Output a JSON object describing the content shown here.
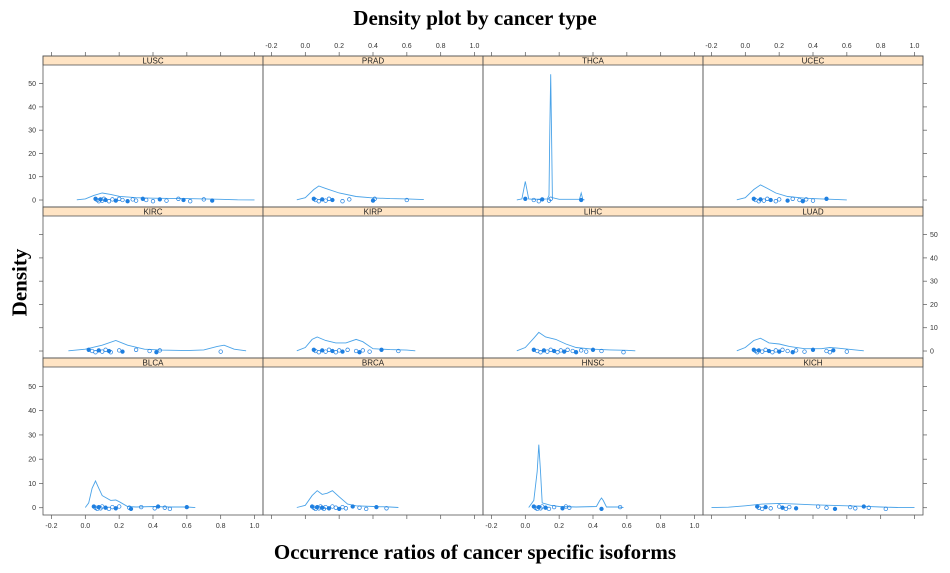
{
  "chart_data": {
    "type": "density",
    "title": "Density plot by cancer type",
    "xlabel": "Occurrence ratios of cancer specific isoforms",
    "ylabel": "Density",
    "xlim": [
      -0.25,
      1.05
    ],
    "ylim": [
      -3,
      58
    ],
    "x_ticks": [
      -0.2,
      0.0,
      0.2,
      0.4,
      0.6,
      0.8,
      1.0
    ],
    "x_tick_labels": [
      "-0.2",
      "0.0",
      "0.2",
      "0.4",
      "0.6",
      "0.8",
      "1.0"
    ],
    "y_ticks": [
      0,
      10,
      20,
      30,
      40,
      50
    ],
    "y_tick_labels": [
      "0",
      "10",
      "20",
      "30",
      "40",
      "50"
    ],
    "layout": {
      "columns": 4,
      "rows": 3
    },
    "colors": {
      "line": "#4aa3e8",
      "points": "#1e7fe0",
      "strip": "#ffe4c4",
      "frame": "#555555"
    },
    "panels": [
      {
        "name": "LUSC",
        "curve": [
          [
            -0.05,
            0.1
          ],
          [
            0.0,
            0.5
          ],
          [
            0.05,
            2.0
          ],
          [
            0.1,
            3.0
          ],
          [
            0.15,
            2.4
          ],
          [
            0.2,
            1.6
          ],
          [
            0.3,
            1.0
          ],
          [
            0.4,
            0.8
          ],
          [
            0.5,
            0.7
          ],
          [
            0.6,
            0.6
          ],
          [
            0.7,
            0.5
          ],
          [
            0.8,
            0.3
          ],
          [
            0.9,
            0.1
          ],
          [
            1.0,
            0.05
          ]
        ],
        "points": [
          0.06,
          0.07,
          0.08,
          0.09,
          0.1,
          0.11,
          0.12,
          0.14,
          0.16,
          0.18,
          0.2,
          0.22,
          0.25,
          0.28,
          0.3,
          0.34,
          0.36,
          0.4,
          0.44,
          0.48,
          0.55,
          0.58,
          0.62,
          0.7,
          0.75
        ]
      },
      {
        "name": "PRAD",
        "curve": [
          [
            -0.05,
            0.1
          ],
          [
            0.0,
            1.0
          ],
          [
            0.05,
            4.5
          ],
          [
            0.08,
            6.0
          ],
          [
            0.12,
            5.0
          ],
          [
            0.2,
            3.0
          ],
          [
            0.3,
            1.5
          ],
          [
            0.4,
            0.9
          ],
          [
            0.5,
            0.6
          ],
          [
            0.6,
            0.5
          ],
          [
            0.7,
            0.2
          ]
        ],
        "points": [
          0.05,
          0.06,
          0.08,
          0.1,
          0.12,
          0.14,
          0.16,
          0.22,
          0.26,
          0.4,
          0.41,
          0.6
        ]
      },
      {
        "name": "THCA",
        "curve": [
          [
            -0.05,
            0.05
          ],
          [
            -0.02,
            0.5
          ],
          [
            0.0,
            8.0
          ],
          [
            0.02,
            0.5
          ],
          [
            0.05,
            0.3
          ],
          [
            0.1,
            0.4
          ],
          [
            0.13,
            0.5
          ],
          [
            0.14,
            2.0
          ],
          [
            0.145,
            30
          ],
          [
            0.15,
            54
          ],
          [
            0.155,
            30
          ],
          [
            0.16,
            1.0
          ],
          [
            0.2,
            0.3
          ],
          [
            0.3,
            0.3
          ],
          [
            0.32,
            0.3
          ],
          [
            0.33,
            3.0
          ],
          [
            0.34,
            0.3
          ],
          [
            0.35,
            0.05
          ]
        ],
        "points": [
          0.0,
          0.05,
          0.08,
          0.1,
          0.14,
          0.15,
          0.33
        ]
      },
      {
        "name": "UCEC",
        "curve": [
          [
            -0.05,
            0.1
          ],
          [
            0.0,
            1.0
          ],
          [
            0.05,
            4.5
          ],
          [
            0.09,
            6.5
          ],
          [
            0.13,
            5.0
          ],
          [
            0.18,
            3.0
          ],
          [
            0.25,
            1.5
          ],
          [
            0.35,
            0.8
          ],
          [
            0.45,
            0.5
          ],
          [
            0.55,
            0.2
          ],
          [
            0.6,
            0.05
          ]
        ],
        "points": [
          0.05,
          0.06,
          0.08,
          0.09,
          0.11,
          0.13,
          0.15,
          0.18,
          0.2,
          0.25,
          0.28,
          0.32,
          0.34,
          0.36,
          0.4,
          0.48
        ]
      },
      {
        "name": "KIRC",
        "curve": [
          [
            -0.1,
            0.1
          ],
          [
            0.0,
            0.8
          ],
          [
            0.1,
            2.5
          ],
          [
            0.18,
            4.5
          ],
          [
            0.25,
            2.5
          ],
          [
            0.35,
            0.8
          ],
          [
            0.45,
            0.4
          ],
          [
            0.6,
            0.2
          ],
          [
            0.7,
            0.5
          ],
          [
            0.78,
            2.0
          ],
          [
            0.82,
            2.5
          ],
          [
            0.88,
            0.8
          ],
          [
            0.95,
            0.1
          ]
        ],
        "points": [
          0.02,
          0.04,
          0.06,
          0.08,
          0.1,
          0.12,
          0.14,
          0.15,
          0.2,
          0.22,
          0.3,
          0.38,
          0.42,
          0.44,
          0.8
        ]
      },
      {
        "name": "KIRP",
        "curve": [
          [
            -0.05,
            0.1
          ],
          [
            0.0,
            1.5
          ],
          [
            0.04,
            5.0
          ],
          [
            0.07,
            6.0
          ],
          [
            0.12,
            4.5
          ],
          [
            0.18,
            3.5
          ],
          [
            0.24,
            3.5
          ],
          [
            0.3,
            5.0
          ],
          [
            0.34,
            4.0
          ],
          [
            0.4,
            1.0
          ],
          [
            0.5,
            0.6
          ],
          [
            0.6,
            0.4
          ],
          [
            0.65,
            0.1
          ]
        ],
        "points": [
          0.05,
          0.06,
          0.08,
          0.1,
          0.12,
          0.14,
          0.16,
          0.18,
          0.2,
          0.22,
          0.25,
          0.3,
          0.32,
          0.34,
          0.38,
          0.45,
          0.55
        ]
      },
      {
        "name": "LIHC",
        "curve": [
          [
            -0.05,
            0.1
          ],
          [
            0.0,
            1.5
          ],
          [
            0.05,
            5.5
          ],
          [
            0.08,
            8.0
          ],
          [
            0.12,
            6.0
          ],
          [
            0.18,
            5.0
          ],
          [
            0.24,
            3.0
          ],
          [
            0.3,
            1.5
          ],
          [
            0.4,
            0.8
          ],
          [
            0.5,
            0.5
          ],
          [
            0.6,
            0.3
          ],
          [
            0.65,
            0.1
          ]
        ],
        "points": [
          0.05,
          0.07,
          0.09,
          0.11,
          0.13,
          0.15,
          0.17,
          0.19,
          0.21,
          0.23,
          0.25,
          0.28,
          0.3,
          0.33,
          0.36,
          0.4,
          0.45,
          0.58
        ]
      },
      {
        "name": "LUAD",
        "curve": [
          [
            -0.05,
            0.1
          ],
          [
            0.0,
            1.5
          ],
          [
            0.05,
            4.5
          ],
          [
            0.09,
            5.5
          ],
          [
            0.14,
            3.5
          ],
          [
            0.2,
            3.0
          ],
          [
            0.26,
            2.0
          ],
          [
            0.35,
            1.0
          ],
          [
            0.45,
            1.0
          ],
          [
            0.5,
            1.5
          ],
          [
            0.55,
            1.2
          ],
          [
            0.65,
            0.5
          ],
          [
            0.7,
            0.1
          ]
        ],
        "points": [
          0.05,
          0.06,
          0.07,
          0.08,
          0.1,
          0.12,
          0.14,
          0.16,
          0.18,
          0.2,
          0.22,
          0.25,
          0.28,
          0.3,
          0.35,
          0.4,
          0.48,
          0.5,
          0.52,
          0.6
        ]
      },
      {
        "name": "BLCA",
        "curve": [
          [
            0.0,
            0.1
          ],
          [
            0.02,
            2.0
          ],
          [
            0.04,
            8.0
          ],
          [
            0.06,
            11.0
          ],
          [
            0.08,
            8.0
          ],
          [
            0.1,
            5.0
          ],
          [
            0.15,
            3.0
          ],
          [
            0.18,
            3.2
          ],
          [
            0.2,
            2.5
          ],
          [
            0.25,
            0.5
          ],
          [
            0.3,
            0.3
          ],
          [
            0.4,
            0.5
          ],
          [
            0.5,
            0.3
          ],
          [
            0.6,
            0.3
          ],
          [
            0.65,
            0.05
          ]
        ],
        "points": [
          0.05,
          0.06,
          0.07,
          0.08,
          0.09,
          0.1,
          0.12,
          0.14,
          0.16,
          0.18,
          0.2,
          0.26,
          0.27,
          0.33,
          0.41,
          0.43,
          0.47,
          0.5,
          0.6
        ]
      },
      {
        "name": "BRCA",
        "curve": [
          [
            -0.05,
            0.1
          ],
          [
            0.0,
            1.0
          ],
          [
            0.04,
            5.0
          ],
          [
            0.07,
            7.0
          ],
          [
            0.1,
            5.5
          ],
          [
            0.13,
            6.0
          ],
          [
            0.16,
            7.0
          ],
          [
            0.2,
            4.5
          ],
          [
            0.25,
            1.5
          ],
          [
            0.3,
            0.8
          ],
          [
            0.4,
            0.5
          ],
          [
            0.5,
            0.3
          ],
          [
            0.55,
            0.1
          ]
        ],
        "points": [
          0.04,
          0.05,
          0.06,
          0.07,
          0.08,
          0.09,
          0.1,
          0.11,
          0.12,
          0.14,
          0.16,
          0.18,
          0.2,
          0.22,
          0.24,
          0.28,
          0.32,
          0.36,
          0.42,
          0.48
        ]
      },
      {
        "name": "HNSC",
        "curve": [
          [
            0.02,
            0.1
          ],
          [
            0.05,
            3.0
          ],
          [
            0.07,
            15.0
          ],
          [
            0.08,
            26.0
          ],
          [
            0.09,
            15.0
          ],
          [
            0.1,
            2.0
          ],
          [
            0.15,
            1.0
          ],
          [
            0.2,
            0.5
          ],
          [
            0.3,
            0.3
          ],
          [
            0.42,
            0.5
          ],
          [
            0.44,
            3.0
          ],
          [
            0.45,
            4.0
          ],
          [
            0.46,
            3.0
          ],
          [
            0.48,
            0.3
          ],
          [
            0.55,
            0.3
          ],
          [
            0.58,
            0.05
          ]
        ],
        "points": [
          0.05,
          0.06,
          0.07,
          0.08,
          0.09,
          0.1,
          0.12,
          0.14,
          0.17,
          0.22,
          0.24,
          0.26,
          0.45,
          0.56
        ]
      },
      {
        "name": "KICH",
        "curve": [
          [
            -0.2,
            0.05
          ],
          [
            -0.1,
            0.2
          ],
          [
            0.0,
            0.8
          ],
          [
            0.1,
            1.5
          ],
          [
            0.2,
            1.8
          ],
          [
            0.3,
            1.5
          ],
          [
            0.4,
            1.2
          ],
          [
            0.5,
            1.0
          ],
          [
            0.6,
            0.8
          ],
          [
            0.7,
            0.6
          ],
          [
            0.8,
            0.3
          ],
          [
            0.9,
            0.1
          ],
          [
            1.0,
            0.05
          ]
        ],
        "points": [
          0.07,
          0.08,
          0.1,
          0.12,
          0.15,
          0.2,
          0.22,
          0.24,
          0.26,
          0.3,
          0.43,
          0.48,
          0.53,
          0.62,
          0.65,
          0.7,
          0.73,
          0.83
        ]
      }
    ]
  }
}
